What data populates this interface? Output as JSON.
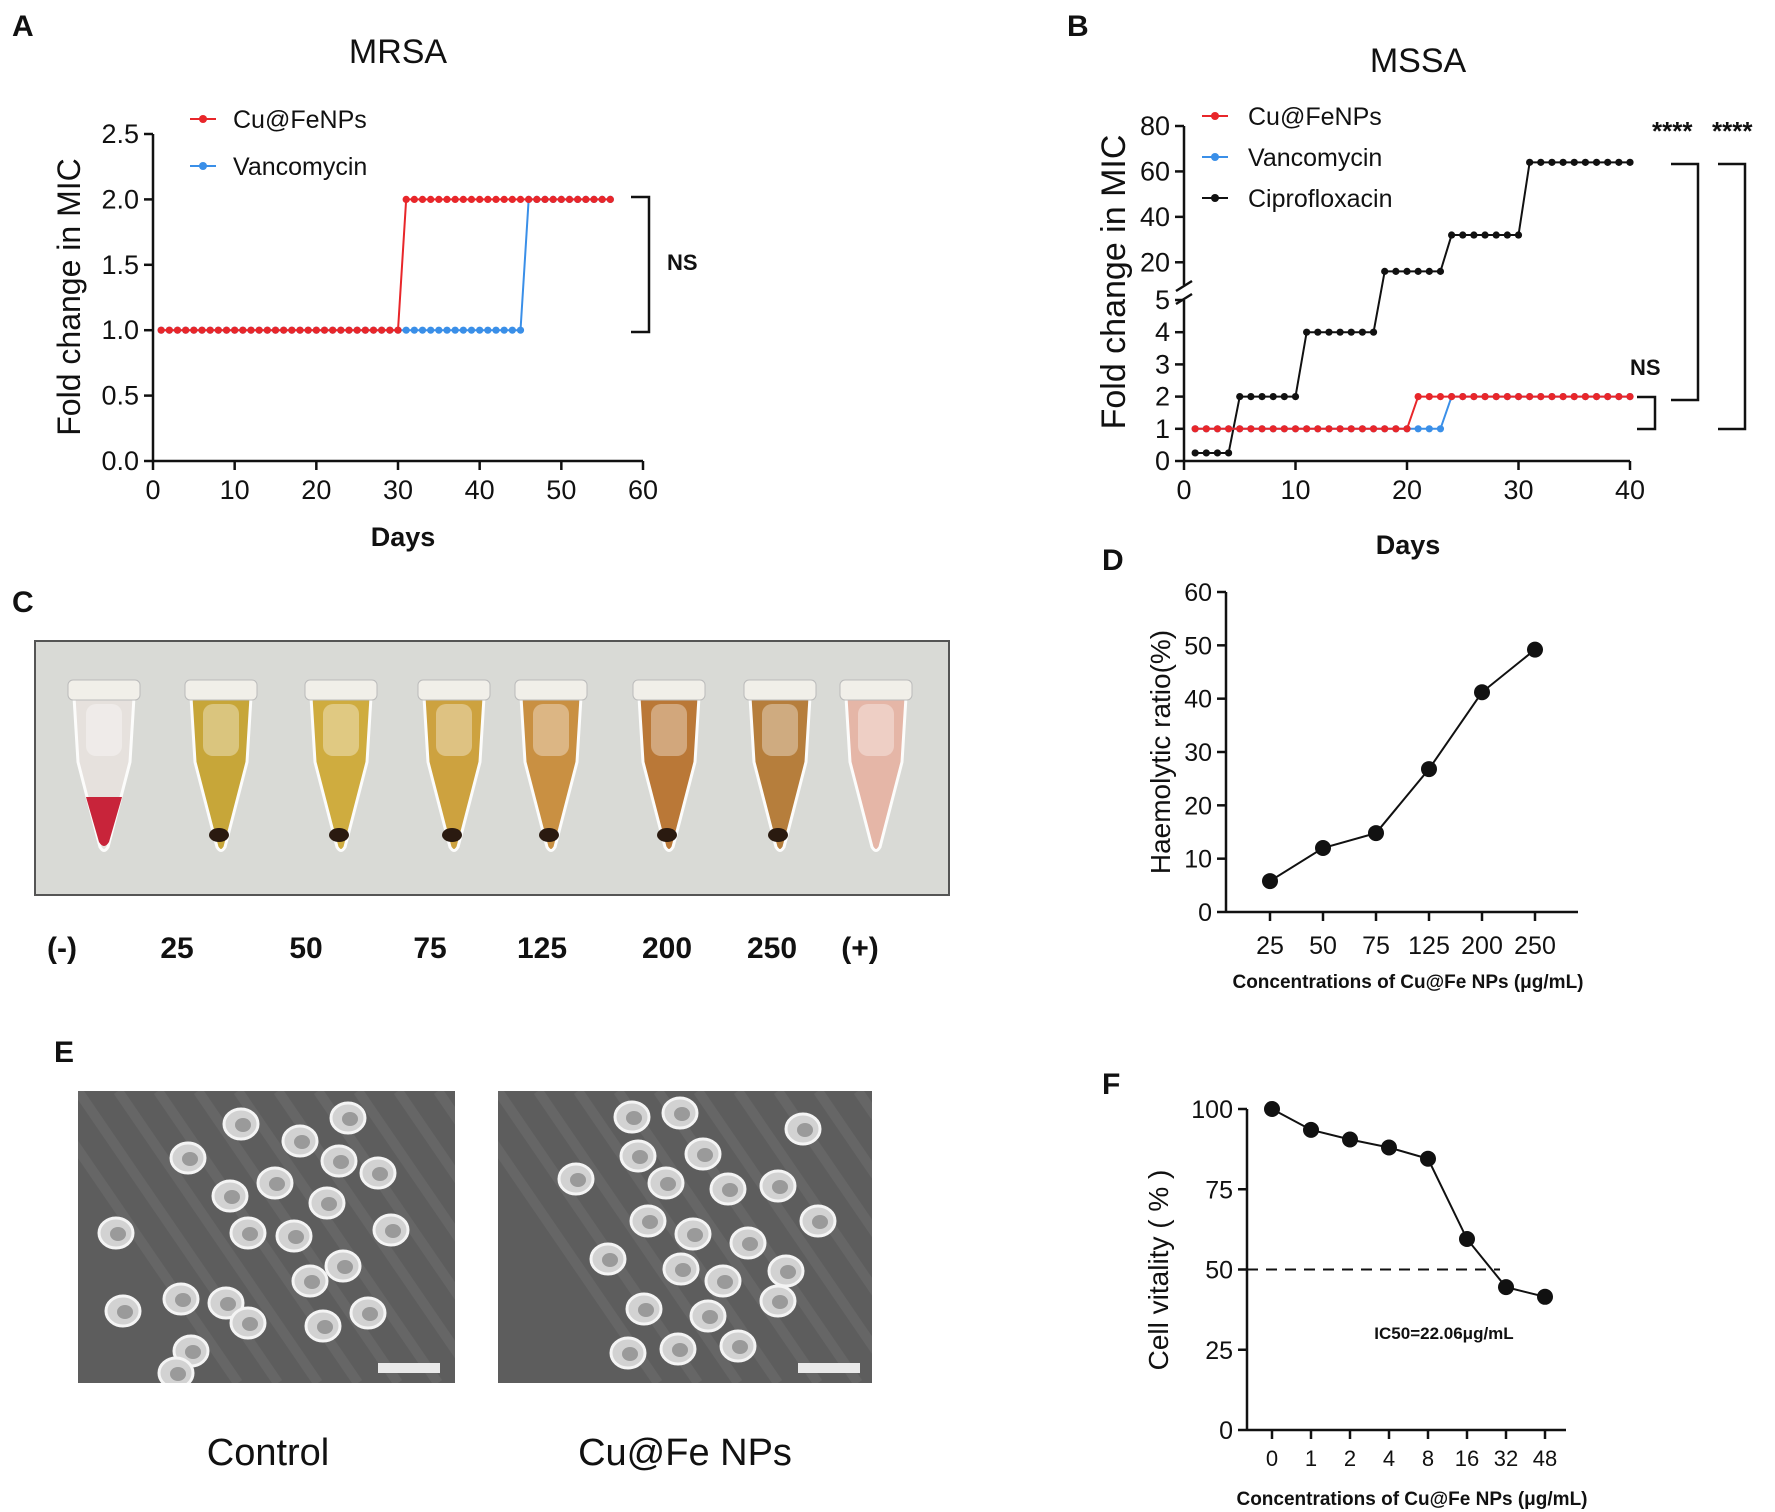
{
  "panels": {
    "A": "A",
    "B": "B",
    "C": "C",
    "D": "D",
    "E": "E",
    "F": "F"
  },
  "chart_data": [
    {
      "id": "A",
      "type": "line",
      "title": "MRSA",
      "xlabel": "Days",
      "ylabel": "Fold change in MIC",
      "xlim": [
        0,
        60
      ],
      "ylim": [
        0,
        2.5
      ],
      "xticks": [
        0,
        10,
        20,
        30,
        40,
        50,
        60
      ],
      "yticks": [
        0.0,
        0.5,
        1.0,
        1.5,
        2.0,
        2.5
      ],
      "series": [
        {
          "name": "Vancomycin",
          "color": "#3a8fe8",
          "x_start": 1,
          "x_end": 56,
          "breaks": [
            [
              45,
              1
            ],
            [
              46,
              2
            ]
          ],
          "segments": [
            {
              "from": 1,
              "to": 45,
              "y": 1
            },
            {
              "from": 46,
              "to": 56,
              "y": 2
            }
          ]
        },
        {
          "name": "Cu@FeNPs",
          "color": "#e8262a",
          "segments": [
            {
              "from": 1,
              "to": 30,
              "y": 1
            },
            {
              "from": 31,
              "to": 56,
              "y": 2
            }
          ]
        }
      ],
      "annotation": "NS"
    },
    {
      "id": "B",
      "type": "line",
      "title": "MSSA",
      "xlabel": "Days",
      "ylabel": "Fold change in MIC",
      "xlim": [
        0,
        40
      ],
      "ylim_lower": [
        0,
        5
      ],
      "ylim_upper": [
        10,
        80
      ],
      "xticks": [
        0,
        10,
        20,
        30,
        40
      ],
      "yticks_lower": [
        0,
        1,
        2,
        3,
        4,
        5
      ],
      "yticks_upper": [
        20,
        40,
        60,
        80
      ],
      "series": [
        {
          "name": "Ciprofloxacin",
          "color": "#111111",
          "segments": [
            {
              "from": 1,
              "to": 4,
              "y": 0.25
            },
            {
              "from": 5,
              "to": 10,
              "y": 2
            },
            {
              "from": 11,
              "to": 17,
              "y": 4
            },
            {
              "from": 18,
              "to": 23,
              "y": 16
            },
            {
              "from": 24,
              "to": 30,
              "y": 32
            },
            {
              "from": 31,
              "to": 40,
              "y": 64
            }
          ]
        },
        {
          "name": "Vancomycin",
          "color": "#3a8fe8",
          "segments": [
            {
              "from": 1,
              "to": 23,
              "y": 1
            },
            {
              "from": 24,
              "to": 40,
              "y": 2
            }
          ]
        },
        {
          "name": "Cu@FeNPs",
          "color": "#e8262a",
          "segments": [
            {
              "from": 1,
              "to": 20,
              "y": 1
            },
            {
              "from": 21,
              "to": 40,
              "y": 2
            }
          ]
        }
      ],
      "annotations": [
        "NS",
        "****",
        "****"
      ]
    },
    {
      "id": "D",
      "type": "line",
      "xlabel": "Concentrations of Cu@Fe NPs (μg/mL)",
      "ylabel": "Haemolytic ratio(%)",
      "categories": [
        "25",
        "50",
        "75",
        "125",
        "200",
        "250"
      ],
      "values": [
        5.8,
        12.0,
        14.8,
        26.8,
        41.2,
        49.2
      ],
      "ylim": [
        0,
        60
      ],
      "yticks": [
        0,
        10,
        20,
        30,
        40,
        50,
        60
      ]
    },
    {
      "id": "F",
      "type": "line",
      "xlabel": "Concentrations of Cu@Fe NPs (μg/mL)",
      "ylabel": "Cell vitality ( % )",
      "categories": [
        "0",
        "1",
        "2",
        "4",
        "8",
        "16",
        "32",
        "48"
      ],
      "values": [
        100,
        93.5,
        90.5,
        88,
        84.5,
        59.5,
        44.5,
        41.5
      ],
      "ylim": [
        0,
        100
      ],
      "yticks": [
        0,
        25,
        50,
        75,
        100
      ],
      "reference_line": 50,
      "annotation": "IC50=22.06μg/mL"
    }
  ],
  "photo_c": {
    "labels": [
      "(-)",
      "25",
      "50",
      "75",
      "125",
      "200",
      "250",
      "(+)"
    ],
    "tube_colors": [
      "#e8e2de",
      "#c6a22c",
      "#cfa933",
      "#cc9e33",
      "#c88a36",
      "#b8702a",
      "#b47730",
      "#e7b3a4"
    ]
  },
  "photo_e": {
    "captions": [
      "Control",
      "Cu@Fe NPs"
    ]
  }
}
